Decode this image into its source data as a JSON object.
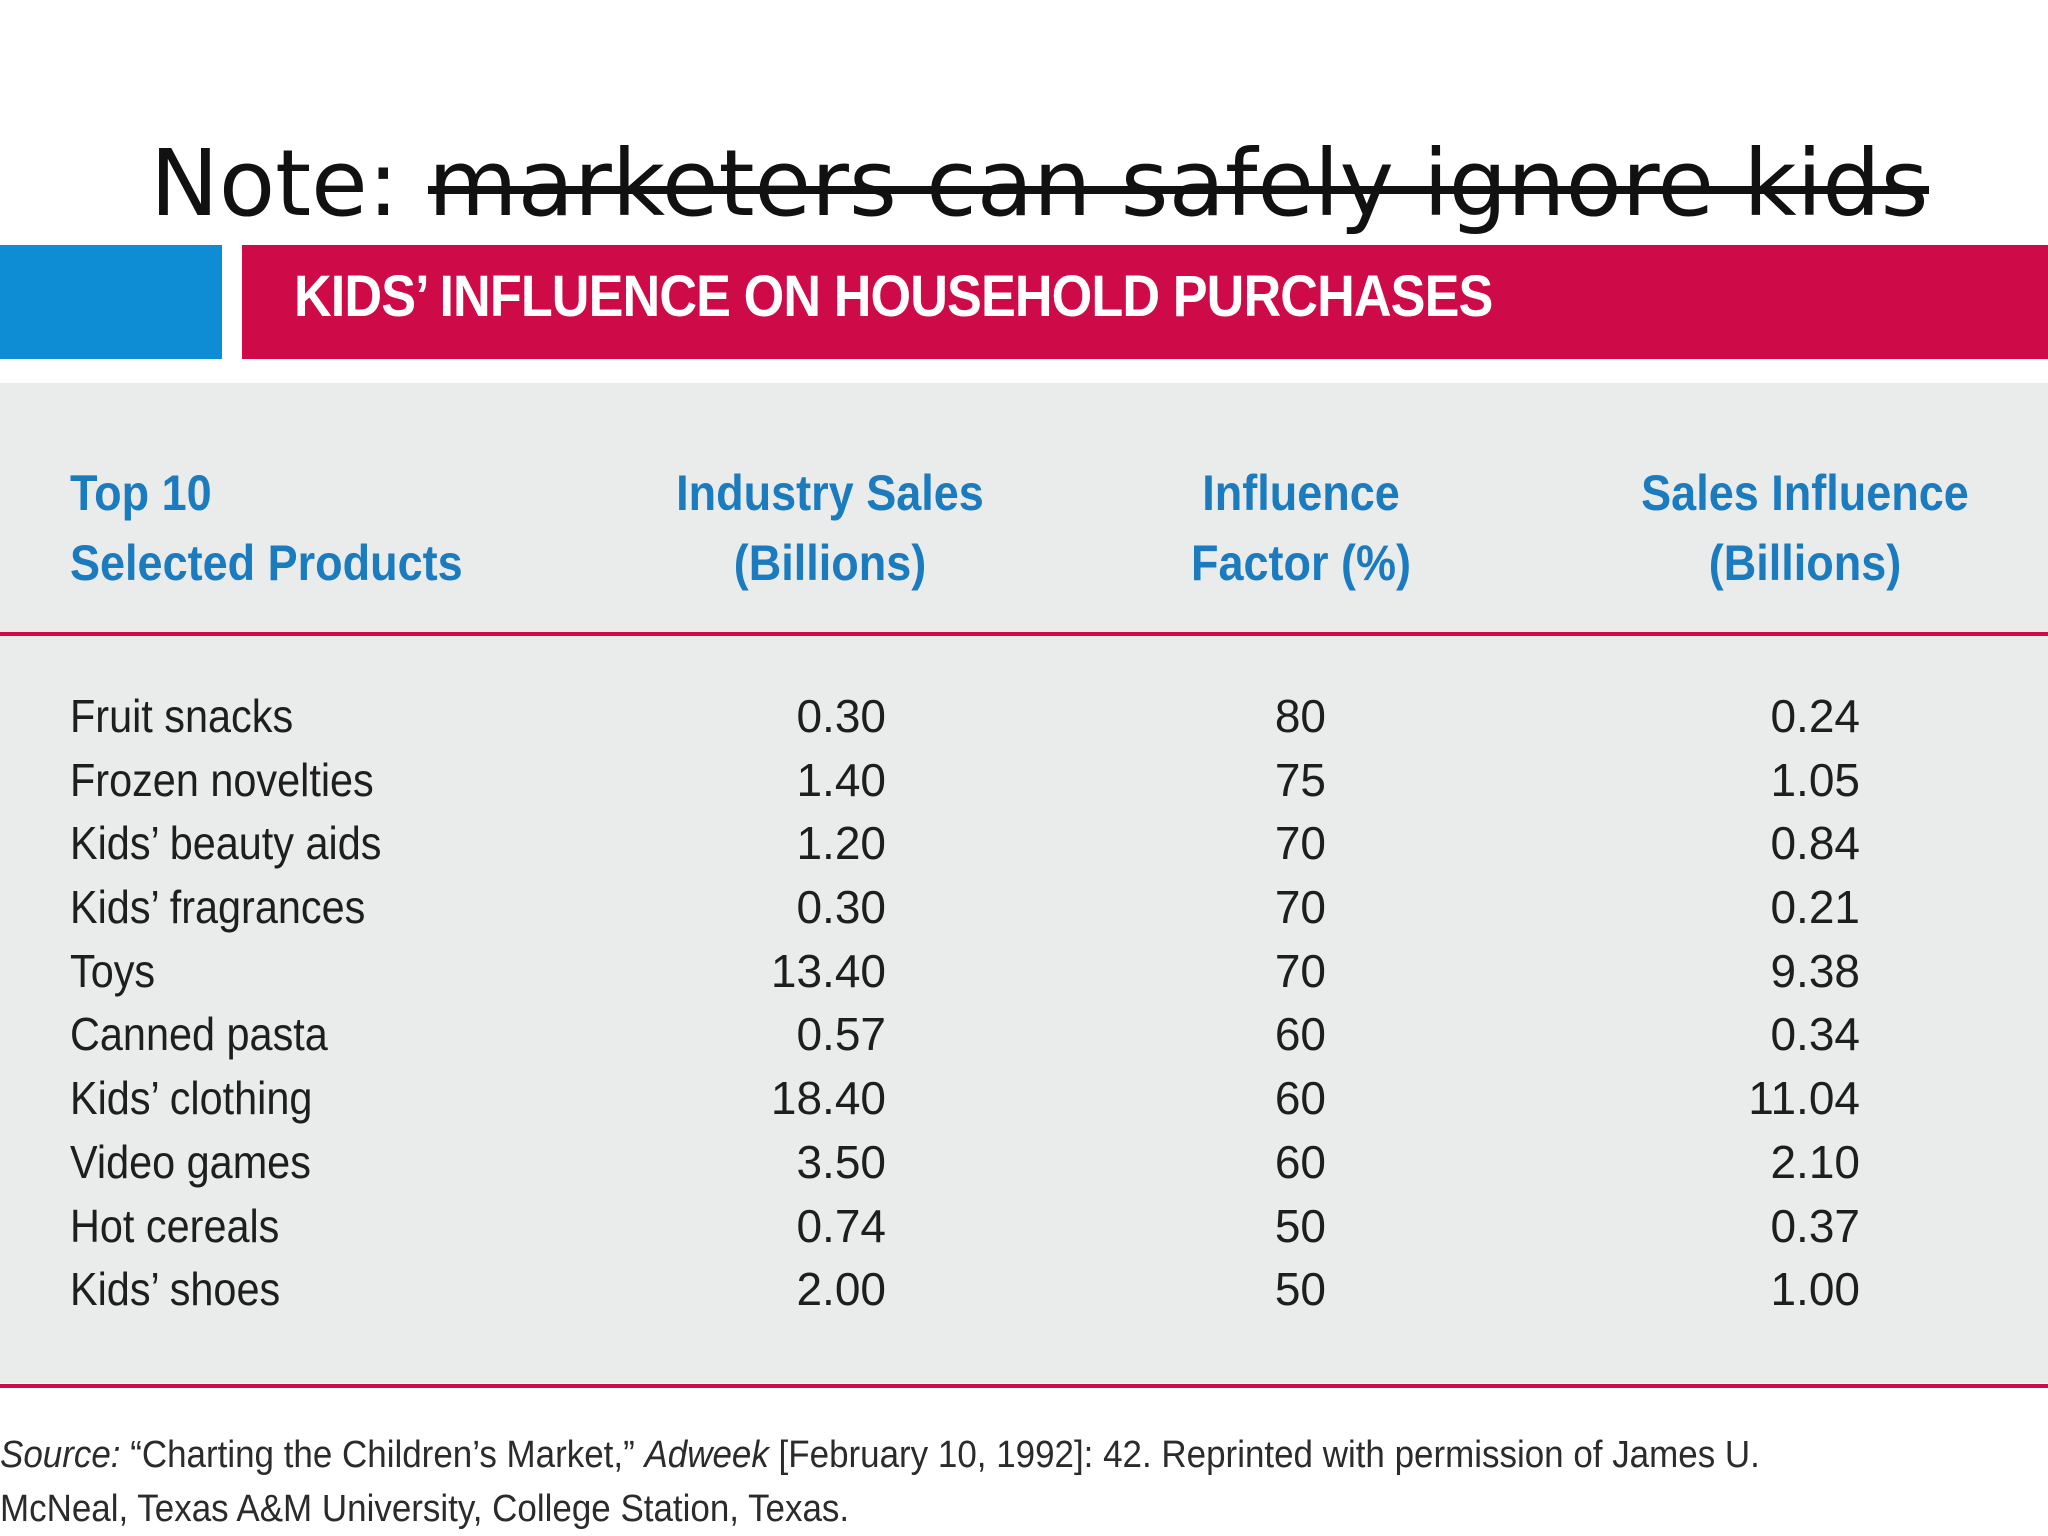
{
  "slide": {
    "title_prefix": "Note: ",
    "title_struck": "marketers can safely ignore kids"
  },
  "table": {
    "title": "KIDS’ INFLUENCE ON HOUSEHOLD PURCHASES",
    "columns": [
      {
        "line1": "Top 10",
        "line2": "Selected Products"
      },
      {
        "line1": "Industry Sales",
        "line2": "(Billions)"
      },
      {
        "line1": "Influence",
        "line2": "Factor (%)"
      },
      {
        "line1": "Sales Influence",
        "line2": "(Billions)"
      }
    ],
    "rows": [
      {
        "product": "Fruit snacks",
        "industry_sales": "0.30",
        "influence_factor": "80",
        "sales_influence": "0.24"
      },
      {
        "product": "Frozen novelties",
        "industry_sales": "1.40",
        "influence_factor": "75",
        "sales_influence": "1.05"
      },
      {
        "product": "Kids’ beauty aids",
        "industry_sales": "1.20",
        "influence_factor": "70",
        "sales_influence": "0.84"
      },
      {
        "product": "Kids’ fragrances",
        "industry_sales": "0.30",
        "influence_factor": "70",
        "sales_influence": "0.21"
      },
      {
        "product": "Toys",
        "industry_sales": "13.40",
        "influence_factor": "70",
        "sales_influence": "9.38"
      },
      {
        "product": "Canned pasta",
        "industry_sales": "0.57",
        "influence_factor": "60",
        "sales_influence": "0.34"
      },
      {
        "product": "Kids’ clothing",
        "industry_sales": "18.40",
        "influence_factor": "60",
        "sales_influence": "11.04"
      },
      {
        "product": "Video games",
        "industry_sales": "3.50",
        "influence_factor": "60",
        "sales_influence": "2.10"
      },
      {
        "product": "Hot cereals",
        "industry_sales": "0.74",
        "influence_factor": "50",
        "sales_influence": "0.37"
      },
      {
        "product": "Kids’ shoes",
        "industry_sales": "2.00",
        "influence_factor": "50",
        "sales_influence": "1.00"
      }
    ]
  },
  "source": {
    "label": "Source:",
    "quote": " “Charting the Children’s Market,” ",
    "publication": "Adweek",
    "rest": " [February 10, 1992]: 42. Reprinted with permission of James U. McNeal, Texas A&M University, College Station, Texas."
  },
  "colors": {
    "accent_red": "#cf0a48",
    "accent_blue": "#0e8dd4",
    "header_text_blue": "#1a7bbf",
    "panel_gray": "#eaebeb"
  }
}
